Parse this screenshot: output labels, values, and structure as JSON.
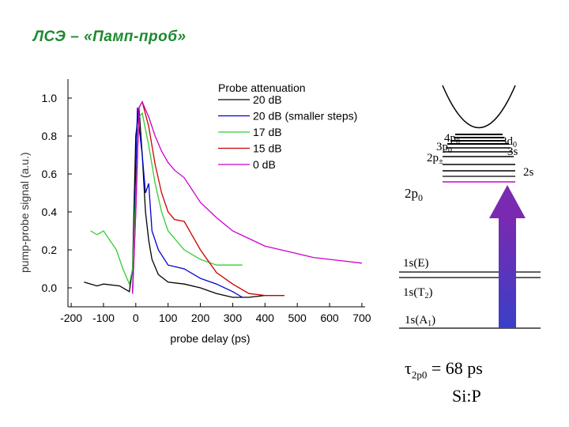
{
  "slide": {
    "title": "ЛСЭ – «Памп-проб»",
    "tau_symbol": "τ",
    "tau_subscript": "2p0",
    "tau_value": "= 68 ps",
    "material": "Si:P"
  },
  "chart_data": {
    "type": "line",
    "title": "",
    "xlabel": "probe delay (ps)",
    "ylabel": "pump-probe signal (a.u.)",
    "xlim": [
      -210,
      710
    ],
    "ylim": [
      -0.1,
      1.1
    ],
    "xticks": [
      "-200",
      "-100",
      "0",
      "100",
      "200",
      "300",
      "400",
      "500",
      "600",
      "700"
    ],
    "yticks": [
      "0.0",
      "0.2",
      "0.4",
      "0.6",
      "0.8",
      "1.0"
    ],
    "legend_title": "Probe attenuation",
    "legend_position": "top-right",
    "series": [
      {
        "name": "20 dB",
        "color": "#000000",
        "x": [
          -160,
          -120,
          -100,
          -50,
          -20,
          -10,
          0,
          10,
          20,
          30,
          40,
          50,
          70,
          100,
          150,
          200,
          250,
          300,
          350,
          400,
          460
        ],
        "y": [
          0.03,
          0.01,
          0.02,
          0.01,
          -0.02,
          0.1,
          0.8,
          0.95,
          0.7,
          0.4,
          0.25,
          0.15,
          0.07,
          0.03,
          0.02,
          0.0,
          -0.03,
          -0.05,
          -0.05,
          -0.04,
          -0.04
        ]
      },
      {
        "name": "20 dB (smaller steps)",
        "color": "#0000cc",
        "x": [
          -10,
          0,
          5,
          10,
          20,
          30,
          40,
          50,
          70,
          100,
          150,
          200,
          250,
          300,
          330
        ],
        "y": [
          -0.03,
          0.6,
          0.95,
          0.85,
          0.7,
          0.5,
          0.55,
          0.3,
          0.2,
          0.12,
          0.1,
          0.05,
          0.02,
          -0.02,
          -0.05
        ]
      },
      {
        "name": "17 dB",
        "color": "#33cc33",
        "x": [
          -140,
          -120,
          -100,
          -60,
          -40,
          -20,
          -10,
          0,
          10,
          20,
          40,
          60,
          80,
          100,
          150,
          200,
          250,
          300,
          330
        ],
        "y": [
          0.3,
          0.28,
          0.3,
          0.2,
          0.1,
          0.02,
          0.1,
          0.5,
          0.9,
          0.92,
          0.75,
          0.55,
          0.4,
          0.3,
          0.2,
          0.15,
          0.12,
          0.12,
          0.12
        ]
      },
      {
        "name": "15 dB",
        "color": "#cc0000",
        "x": [
          -10,
          0,
          10,
          20,
          40,
          60,
          80,
          100,
          120,
          150,
          200,
          250,
          300,
          350,
          400,
          460
        ],
        "y": [
          -0.03,
          0.4,
          0.95,
          0.98,
          0.85,
          0.65,
          0.5,
          0.4,
          0.36,
          0.35,
          0.2,
          0.08,
          0.02,
          -0.03,
          -0.04,
          -0.04
        ]
      },
      {
        "name": "0 dB",
        "color": "#cc00cc",
        "x": [
          -10,
          0,
          10,
          20,
          40,
          60,
          80,
          100,
          120,
          150,
          200,
          250,
          300,
          350,
          400,
          450,
          500,
          550,
          600,
          650,
          700
        ],
        "y": [
          -0.03,
          0.4,
          0.95,
          0.98,
          0.9,
          0.8,
          0.72,
          0.66,
          0.62,
          0.58,
          0.45,
          0.37,
          0.3,
          0.26,
          0.22,
          0.2,
          0.18,
          0.16,
          0.15,
          0.14,
          0.13
        ]
      }
    ]
  },
  "diagram": {
    "levels": {
      "l4p0": "4p",
      "l4p0_sub": "0",
      "l3d0": "3d",
      "l3d0_sub": "0",
      "l3p0": "3p",
      "l3p0_sub": "0",
      "l3s": "3s",
      "l2ppm": "2p",
      "l2ppm_sub": "±",
      "l2s": "2s",
      "l2p0": "2p",
      "l2p0_sub": "0",
      "l1sE": "1s(E)",
      "l1sT2": "1s(T",
      "l1sT2_sub": "2",
      "l1sT2_end": ")",
      "l1sA1": "1s(A",
      "l1sA1_sub": "1",
      "l1sA1_end": ")"
    },
    "arrow_gradient": [
      "#7a2ab0",
      "#3a3fc8"
    ]
  }
}
